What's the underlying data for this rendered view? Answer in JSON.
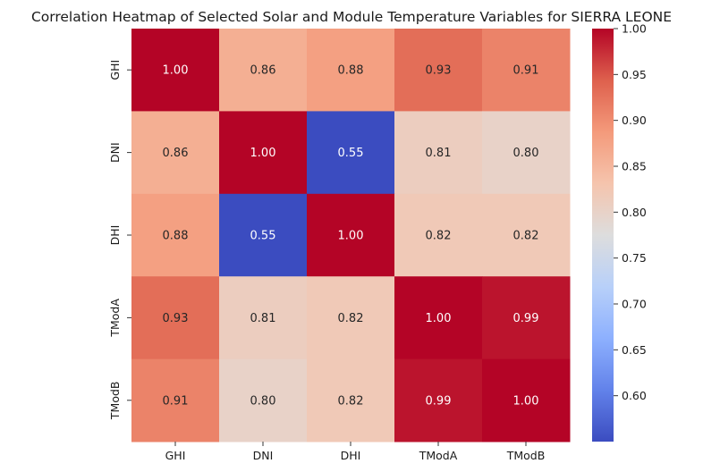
{
  "chart_data": {
    "type": "heatmap",
    "title": "Correlation Heatmap of Selected Solar and Module Temperature Variables for SIERRA LEONE",
    "xlabel": "",
    "ylabel": "",
    "x_categories": [
      "GHI",
      "DNI",
      "DHI",
      "TModA",
      "TModB"
    ],
    "y_categories": [
      "GHI",
      "DNI",
      "DHI",
      "TModA",
      "TModB"
    ],
    "values": [
      [
        1.0,
        0.86,
        0.88,
        0.93,
        0.91
      ],
      [
        0.86,
        1.0,
        0.55,
        0.81,
        0.8
      ],
      [
        0.88,
        0.55,
        1.0,
        0.82,
        0.82
      ],
      [
        0.93,
        0.81,
        0.82,
        1.0,
        0.99
      ],
      [
        0.91,
        0.8,
        0.82,
        0.99,
        1.0
      ]
    ],
    "value_format": "2 decimals",
    "colormap": "coolwarm",
    "colorbar": {
      "range": [
        0.55,
        1.0
      ],
      "ticks": [
        "0.60",
        "0.65",
        "0.70",
        "0.75",
        "0.80",
        "0.85",
        "0.90",
        "0.95",
        "1.00"
      ]
    }
  }
}
